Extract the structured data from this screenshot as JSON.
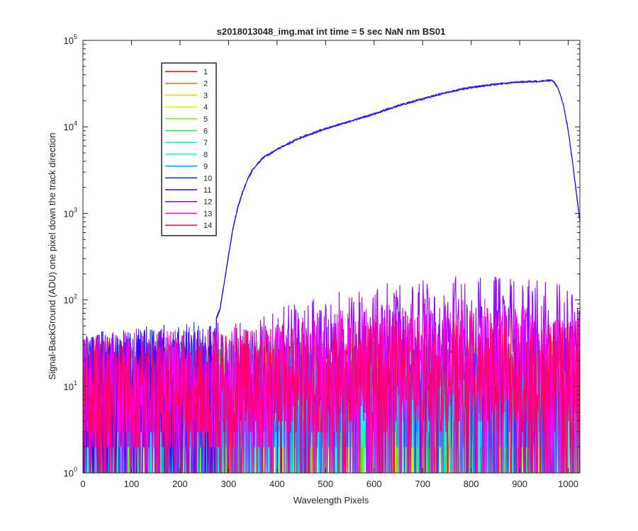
{
  "chart_data": {
    "type": "line",
    "title": "s2018013048_img.mat int time = 5 sec  NaN nm BS01",
    "xlabel": "Wavelength Pixels",
    "ylabel": "Signal-BackGround (ADU) one pixel down the track direction",
    "xlim": [
      0,
      1024
    ],
    "ylim": [
      1,
      100000
    ],
    "yscale": "log",
    "x_ticks": [
      "0",
      "100",
      "200",
      "300",
      "400",
      "500",
      "600",
      "700",
      "800",
      "900",
      "1000"
    ],
    "y_ticks": [
      {
        "base": "10",
        "exp": "0"
      },
      {
        "base": "10",
        "exp": "1"
      },
      {
        "base": "10",
        "exp": "2"
      },
      {
        "base": "10",
        "exp": "3"
      },
      {
        "base": "10",
        "exp": "4"
      },
      {
        "base": "10",
        "exp": "5"
      }
    ],
    "legend_position": "top-left",
    "grid": false,
    "series": [
      {
        "name": "1",
        "color": "#ff0000",
        "noise": {
          "x0": 0,
          "x1": 1024,
          "center": [
            [
              0,
              8
            ],
            [
              1024,
              8
            ]
          ]
        }
      },
      {
        "name": "2",
        "color": "#ff6600",
        "noise": {
          "x0": 0,
          "x1": 1024,
          "center": [
            [
              0,
              8
            ],
            [
              1024,
              8
            ]
          ]
        }
      },
      {
        "name": "3",
        "color": "#ffcc00",
        "noise": {
          "x0": 0,
          "x1": 1024,
          "center": [
            [
              0,
              8
            ],
            [
              1024,
              8
            ]
          ]
        }
      },
      {
        "name": "4",
        "color": "#ccff00",
        "noise": {
          "x0": 0,
          "x1": 1024,
          "center": [
            [
              0,
              8
            ],
            [
              1024,
              8
            ]
          ]
        }
      },
      {
        "name": "5",
        "color": "#66ff00",
        "noise": {
          "x0": 0,
          "x1": 1024,
          "center": [
            [
              0,
              8
            ],
            [
              1024,
              8
            ]
          ]
        }
      },
      {
        "name": "6",
        "color": "#00ff33",
        "noise": {
          "x0": 0,
          "x1": 1024,
          "center": [
            [
              0,
              8
            ],
            [
              1024,
              8
            ]
          ]
        }
      },
      {
        "name": "7",
        "color": "#00ff99",
        "noise": {
          "x0": 0,
          "x1": 1024,
          "center": [
            [
              0,
              8
            ],
            [
              1024,
              8
            ]
          ]
        }
      },
      {
        "name": "8",
        "color": "#00ffff",
        "noise": {
          "x0": 0,
          "x1": 1024,
          "center": [
            [
              0,
              8
            ],
            [
              1024,
              8
            ]
          ]
        }
      },
      {
        "name": "9",
        "color": "#0099ff",
        "noise": {
          "x0": 0,
          "x1": 1024,
          "center": [
            [
              0,
              8
            ],
            [
              1024,
              8
            ]
          ]
        }
      },
      {
        "name": "10",
        "color": "#0033ff",
        "noise": {
          "x0": 0,
          "x1": 275,
          "center": [
            [
              0,
              10
            ],
            [
              275,
              14
            ]
          ]
        },
        "profile": [
          [
            275,
            60
          ],
          [
            282,
            75
          ],
          [
            290,
            140
          ],
          [
            300,
            320
          ],
          [
            310,
            700
          ],
          [
            320,
            1200
          ],
          [
            330,
            1800
          ],
          [
            340,
            2500
          ],
          [
            350,
            3200
          ],
          [
            370,
            4300
          ],
          [
            400,
            5500
          ],
          [
            450,
            7500
          ],
          [
            500,
            9500
          ],
          [
            550,
            11500
          ],
          [
            600,
            14000
          ],
          [
            650,
            17500
          ],
          [
            700,
            21000
          ],
          [
            750,
            25000
          ],
          [
            800,
            28500
          ],
          [
            850,
            31000
          ],
          [
            900,
            33000
          ],
          [
            940,
            33500
          ],
          [
            960,
            34500
          ],
          [
            970,
            33500
          ],
          [
            980,
            27000
          ],
          [
            990,
            18000
          ],
          [
            1000,
            9000
          ],
          [
            1010,
            3500
          ],
          [
            1020,
            1200
          ],
          [
            1024,
            800
          ]
        ]
      },
      {
        "name": "11",
        "color": "#3300ff",
        "noise": {
          "x0": 0,
          "x1": 275,
          "center": [
            [
              0,
              10
            ],
            [
              275,
              14
            ]
          ]
        },
        "profile": [
          [
            275,
            62
          ],
          [
            282,
            78
          ],
          [
            290,
            145
          ],
          [
            300,
            330
          ],
          [
            310,
            720
          ],
          [
            320,
            1250
          ],
          [
            330,
            1850
          ],
          [
            340,
            2550
          ],
          [
            350,
            3250
          ],
          [
            370,
            4350
          ],
          [
            400,
            5550
          ],
          [
            450,
            7600
          ],
          [
            500,
            9600
          ],
          [
            550,
            11600
          ],
          [
            600,
            14200
          ],
          [
            650,
            17700
          ],
          [
            700,
            21200
          ],
          [
            750,
            25200
          ],
          [
            800,
            28700
          ],
          [
            850,
            31200
          ],
          [
            900,
            33200
          ],
          [
            940,
            33700
          ],
          [
            960,
            34700
          ],
          [
            970,
            33700
          ],
          [
            980,
            27200
          ],
          [
            990,
            18200
          ],
          [
            1000,
            9100
          ],
          [
            1010,
            3600
          ],
          [
            1020,
            1250
          ],
          [
            1024,
            820
          ]
        ]
      },
      {
        "name": "12",
        "color": "#9900ff",
        "noise": {
          "x0": 0,
          "x1": 1024,
          "center": [
            [
              0,
              10
            ],
            [
              250,
              12
            ],
            [
              400,
              20
            ],
            [
              600,
              35
            ],
            [
              800,
              45
            ],
            [
              950,
              40
            ],
            [
              1024,
              30
            ]
          ]
        }
      },
      {
        "name": "13",
        "color": "#ff00ff",
        "noise": {
          "x0": 0,
          "x1": 1024,
          "center": [
            [
              0,
              9
            ],
            [
              300,
              11
            ],
            [
              600,
              20
            ],
            [
              800,
              25
            ],
            [
              1024,
              18
            ]
          ]
        }
      },
      {
        "name": "14",
        "color": "#ff0066",
        "noise": {
          "x0": 0,
          "x1": 1024,
          "center": [
            [
              0,
              9
            ],
            [
              300,
              11
            ],
            [
              600,
              16
            ],
            [
              800,
              18
            ],
            [
              1024,
              14
            ]
          ]
        }
      }
    ]
  }
}
